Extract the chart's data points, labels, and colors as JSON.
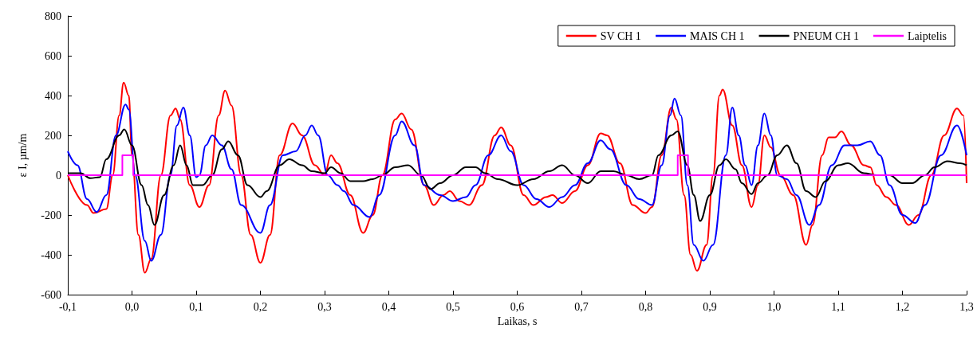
{
  "chart_data": {
    "type": "line",
    "xlabel": "Laikas, s",
    "ylabel": "ε I, µm/m",
    "xlim": [
      -0.1,
      1.3
    ],
    "xticks": [
      {
        "value": -0.1,
        "label": "-0,1"
      },
      {
        "value": 0,
        "label": "0,0"
      },
      {
        "value": 0.1,
        "label": "0,1"
      },
      {
        "value": 0.2,
        "label": "0,2"
      },
      {
        "value": 0.3,
        "label": "0,3"
      },
      {
        "value": 0.4,
        "label": "0,4"
      },
      {
        "value": 0.5,
        "label": "0,5"
      },
      {
        "value": 0.6,
        "label": "0,6"
      },
      {
        "value": 0.7,
        "label": "0,7"
      },
      {
        "value": 0.8,
        "label": "0,8"
      },
      {
        "value": 0.9,
        "label": "0,9"
      },
      {
        "value": 1,
        "label": "1,0"
      },
      {
        "value": 1.1,
        "label": "1,1"
      },
      {
        "value": 1.2,
        "label": "1,2"
      },
      {
        "value": 1.3,
        "label": "1,3"
      }
    ],
    "ylim": [
      -600,
      800
    ],
    "yticks": [
      -600,
      -400,
      -200,
      0,
      200,
      400,
      600,
      800
    ],
    "grid": false,
    "legend": "top right",
    "marker": "none",
    "line_style": "solid",
    "series": [
      {
        "name": "SV CH 1",
        "color": "#ff0000",
        "x": [
          -0.1,
          -0.07,
          -0.06,
          -0.04,
          -0.03,
          -0.02,
          -0.013,
          -0.005,
          0,
          0.01,
          0.02,
          0.03,
          0.045,
          0.06,
          0.068,
          0.075,
          0.09,
          0.105,
          0.12,
          0.135,
          0.145,
          0.155,
          0.17,
          0.185,
          0.2,
          0.215,
          0.23,
          0.25,
          0.265,
          0.285,
          0.3,
          0.31,
          0.32,
          0.34,
          0.36,
          0.375,
          0.39,
          0.41,
          0.42,
          0.435,
          0.455,
          0.47,
          0.485,
          0.495,
          0.51,
          0.525,
          0.545,
          0.565,
          0.575,
          0.59,
          0.61,
          0.625,
          0.645,
          0.655,
          0.67,
          0.69,
          0.71,
          0.73,
          0.74,
          0.76,
          0.78,
          0.8,
          0.81,
          0.825,
          0.84,
          0.848,
          0.86,
          0.87,
          0.88,
          0.895,
          0.905,
          0.915,
          0.92,
          0.935,
          0.95,
          0.965,
          0.975,
          0.985,
          0.995,
          1.01,
          1.03,
          1.05,
          1.06,
          1.075,
          1.085,
          1.095,
          1.105,
          1.12,
          1.14,
          1.15,
          1.16,
          1.175,
          1.19,
          1.21,
          1.225,
          1.245,
          1.265,
          1.285,
          1.295,
          1.3
        ],
        "values": [
          0,
          -150,
          -190,
          -170,
          0,
          300,
          465,
          400,
          100,
          -300,
          -490,
          -420,
          0,
          300,
          335,
          280,
          -50,
          -160,
          -50,
          300,
          425,
          350,
          0,
          -300,
          -440,
          -300,
          100,
          260,
          200,
          50,
          0,
          100,
          60,
          -100,
          -290,
          -200,
          0,
          280,
          310,
          230,
          -50,
          -150,
          -100,
          -80,
          -130,
          -150,
          -50,
          200,
          240,
          150,
          -100,
          -150,
          -110,
          -100,
          -140,
          -80,
          50,
          210,
          200,
          60,
          -150,
          -190,
          -160,
          100,
          340,
          280,
          -100,
          -400,
          -480,
          -350,
          0,
          400,
          430,
          250,
          50,
          -160,
          -50,
          200,
          140,
          0,
          -100,
          -350,
          -250,
          100,
          190,
          190,
          220,
          150,
          50,
          40,
          -50,
          -110,
          -150,
          -250,
          -200,
          0,
          200,
          335,
          300,
          -40
        ]
      },
      {
        "name": "MAIS CH 1",
        "color": "#0000ff",
        "x": [
          -0.1,
          -0.085,
          -0.07,
          -0.055,
          -0.04,
          -0.025,
          -0.01,
          -0.005,
          0.005,
          0.02,
          0.03,
          0.045,
          0.06,
          0.07,
          0.08,
          0.09,
          0.1,
          0.105,
          0.115,
          0.125,
          0.14,
          0.155,
          0.17,
          0.2,
          0.215,
          0.235,
          0.255,
          0.27,
          0.28,
          0.29,
          0.305,
          0.32,
          0.33,
          0.345,
          0.37,
          0.385,
          0.41,
          0.42,
          0.44,
          0.455,
          0.48,
          0.5,
          0.52,
          0.535,
          0.555,
          0.575,
          0.59,
          0.61,
          0.63,
          0.65,
          0.67,
          0.69,
          0.71,
          0.73,
          0.745,
          0.77,
          0.79,
          0.81,
          0.825,
          0.838,
          0.845,
          0.855,
          0.865,
          0.875,
          0.89,
          0.905,
          0.925,
          0.935,
          0.945,
          0.955,
          0.965,
          0.975,
          0.985,
          0.995,
          1.005,
          1.02,
          1.035,
          1.055,
          1.07,
          1.09,
          1.11,
          1.13,
          1.15,
          1.165,
          1.18,
          1.2,
          1.22,
          1.235,
          1.26,
          1.285,
          1.3
        ],
        "values": [
          120,
          50,
          -120,
          -185,
          -100,
          200,
          355,
          330,
          0,
          -330,
          -430,
          -300,
          0,
          250,
          340,
          200,
          -10,
          0,
          150,
          200,
          150,
          30,
          -150,
          -290,
          -150,
          100,
          120,
          200,
          250,
          200,
          0,
          -50,
          -80,
          -150,
          -210,
          -100,
          200,
          270,
          150,
          -50,
          -100,
          -130,
          -110,
          -50,
          100,
          200,
          120,
          -50,
          -120,
          -160,
          -110,
          -50,
          60,
          175,
          130,
          -50,
          -120,
          -150,
          50,
          300,
          385,
          300,
          -50,
          -350,
          -430,
          -350,
          100,
          340,
          200,
          50,
          -50,
          150,
          310,
          200,
          0,
          -20,
          -100,
          -250,
          -150,
          50,
          150,
          150,
          170,
          100,
          -50,
          -200,
          -240,
          -150,
          100,
          250,
          100
        ]
      },
      {
        "name": "PNEUM CH 1",
        "color": "#000000",
        "x": [
          -0.1,
          -0.08,
          -0.065,
          -0.05,
          -0.04,
          -0.02,
          -0.012,
          0,
          0.015,
          0.025,
          0.035,
          0.05,
          0.065,
          0.075,
          0.085,
          0.095,
          0.11,
          0.125,
          0.14,
          0.15,
          0.165,
          0.18,
          0.2,
          0.21,
          0.23,
          0.245,
          0.265,
          0.28,
          0.3,
          0.31,
          0.325,
          0.34,
          0.36,
          0.375,
          0.39,
          0.41,
          0.43,
          0.45,
          0.465,
          0.48,
          0.5,
          0.52,
          0.535,
          0.55,
          0.57,
          0.6,
          0.625,
          0.65,
          0.67,
          0.69,
          0.71,
          0.73,
          0.75,
          0.77,
          0.79,
          0.81,
          0.82,
          0.84,
          0.85,
          0.865,
          0.875,
          0.885,
          0.9,
          0.915,
          0.925,
          0.94,
          0.95,
          0.965,
          0.975,
          0.99,
          1.005,
          1.02,
          1.035,
          1.05,
          1.065,
          1.08,
          1.1,
          1.115,
          1.14,
          1.16,
          1.18,
          1.2,
          1.215,
          1.235,
          1.25,
          1.27,
          1.29,
          1.3
        ],
        "values": [
          10,
          10,
          -15,
          -10,
          80,
          200,
          230,
          150,
          -50,
          -150,
          -250,
          -100,
          50,
          150,
          50,
          -50,
          -50,
          0,
          130,
          170,
          100,
          -50,
          -110,
          -80,
          50,
          80,
          50,
          20,
          10,
          40,
          10,
          -30,
          -30,
          -20,
          0,
          40,
          50,
          0,
          -70,
          -40,
          0,
          40,
          40,
          10,
          -20,
          -50,
          -20,
          20,
          50,
          0,
          -40,
          20,
          20,
          0,
          -20,
          0,
          100,
          200,
          220,
          50,
          -100,
          -230,
          -100,
          50,
          80,
          30,
          -40,
          -95,
          -40,
          0,
          100,
          150,
          60,
          -80,
          -110,
          -30,
          50,
          60,
          10,
          0,
          0,
          -40,
          -40,
          0,
          40,
          70,
          60,
          50
        ]
      },
      {
        "name": "Laiptelis",
        "type": "step",
        "color": "#ff00ff",
        "x": [
          -0.1,
          -0.015,
          0.002,
          0.85,
          0.866,
          1.3
        ],
        "values": [
          0,
          100,
          0,
          100,
          0,
          0
        ]
      }
    ]
  }
}
